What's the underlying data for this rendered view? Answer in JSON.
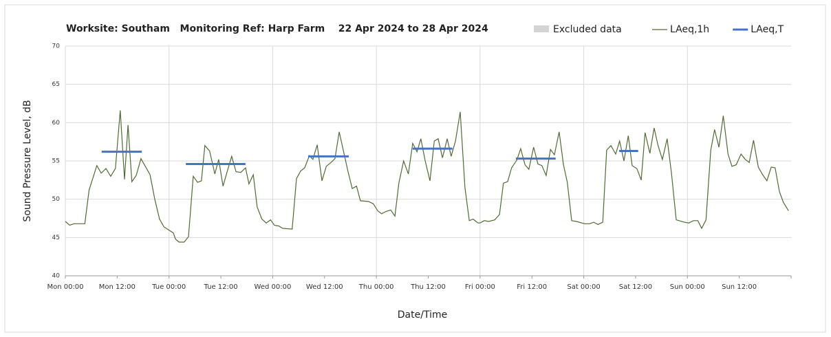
{
  "chart_data": {
    "type": "line",
    "title": "Worksite: Southam   Monitoring Ref: Harp Farm    22 Apr 2024 to 28 Apr 2024",
    "y_label": "Sound Pressure Level, dB",
    "x_label": "Date/Time",
    "legend_excluded": {
      "name": "Excluded data",
      "color": "#d4d4d4"
    },
    "xlim": [
      0,
      168
    ],
    "xticks": [
      {
        "value": 0,
        "label": "Mon 00:00"
      },
      {
        "value": 12,
        "label": "Mon 12:00"
      },
      {
        "value": 24,
        "label": "Tue 00:00"
      },
      {
        "value": 36,
        "label": "Tue 12:00"
      },
      {
        "value": 48,
        "label": "Wed 00:00"
      },
      {
        "value": 60,
        "label": "Wed 12:00"
      },
      {
        "value": 72,
        "label": "Thu 00:00"
      },
      {
        "value": 84,
        "label": "Thu 12:00"
      },
      {
        "value": 96,
        "label": "Fri 00:00"
      },
      {
        "value": 108,
        "label": "Fri 12:00"
      },
      {
        "value": 120,
        "label": "Sat 00:00"
      },
      {
        "value": 132,
        "label": "Sat 12:00"
      },
      {
        "value": 144,
        "label": "Sun 00:00"
      },
      {
        "value": 156,
        "label": "Sun 12:00"
      }
    ],
    "ylim": [
      40,
      70
    ],
    "yticks": [
      40,
      45,
      50,
      55,
      60,
      65,
      70
    ],
    "grid": true,
    "series": [
      {
        "name": "LAeq,1h",
        "color": "#4f6a32",
        "x": [
          0,
          1,
          2,
          4.5,
          5.5,
          7.3,
          8.3,
          9.4,
          10.5,
          11.6,
          12.7,
          13.7,
          14.5,
          15.4,
          16.4,
          17.5,
          19.6,
          20.7,
          21.8,
          22.8,
          23.9,
          25,
          25.5,
          26.3,
          27.5,
          28.5,
          29.6,
          30.6,
          31.5,
          32.3,
          33.4,
          34.6,
          35.5,
          36.5,
          37.4,
          38.5,
          39.5,
          40.6,
          41.7,
          42.5,
          43.5,
          44.4,
          45.5,
          46.5,
          47.5,
          48.4,
          49.4,
          50.3,
          52.5,
          53.5,
          54.5,
          55.4,
          56.5,
          57.3,
          58.3,
          59.4,
          60.4,
          61.5,
          62.4,
          63.4,
          64.5,
          65.4,
          66.4,
          67.4,
          68.3,
          70.2,
          71.3,
          72.3,
          73.2,
          74.2,
          75.3,
          76.3,
          77.2,
          78.3,
          79.4,
          80.4,
          81.4,
          82.3,
          83.3,
          84.4,
          85.4,
          86.3,
          87.3,
          88.4,
          89.3,
          90.3,
          91.4,
          92.5,
          93.5,
          94.4,
          95.5,
          96,
          97,
          98,
          99.4,
          100.5,
          101.4,
          102.4,
          103.3,
          104.5,
          105.4,
          106.4,
          107.3,
          108.4,
          109.4,
          110.3,
          111.3,
          112.3,
          113.2,
          114.3,
          115.3,
          116.2,
          117.2,
          118.3,
          120.2,
          121.4,
          122.3,
          123.3,
          124.4,
          125.3,
          126.3,
          127.4,
          128.3,
          129.3,
          130.3,
          131.2,
          132.3,
          133.3,
          134.2,
          135.3,
          136.3,
          137.2,
          138.2,
          139.3,
          140.3,
          141.4,
          143.3,
          144.3,
          145.4,
          146.4,
          147.3,
          148.3,
          149.4,
          150.3,
          151.3,
          152.3,
          153.4,
          154.3,
          155.3,
          156.4,
          157.4,
          158.3,
          159.3,
          160.4,
          161.3,
          162.4,
          163.4,
          164.3,
          165.3,
          166.2,
          167.4
        ],
        "values": [
          47.1,
          46.6,
          46.8,
          46.8,
          51.2,
          54.4,
          53.4,
          54,
          53,
          54,
          61.6,
          52.6,
          59.7,
          52.3,
          53.1,
          55.3,
          53.2,
          50,
          47.4,
          46.4,
          46,
          45.6,
          44.8,
          44.4,
          44.4,
          45.1,
          53,
          52.2,
          52.4,
          57,
          56.3,
          53.3,
          55.2,
          51.7,
          53.5,
          55.6,
          53.6,
          53.5,
          54.1,
          52,
          53.2,
          49,
          47.4,
          46.9,
          47.3,
          46.6,
          46.5,
          46.2,
          46.1,
          52.7,
          53.7,
          54.1,
          55.7,
          55.2,
          57.1,
          52.4,
          54.3,
          54.8,
          55.3,
          58.8,
          56,
          53.7,
          51.4,
          51.7,
          49.8,
          49.7,
          49.4,
          48.5,
          48.1,
          48.4,
          48.6,
          47.8,
          52.1,
          55,
          53.3,
          57.3,
          56.2,
          57.9,
          55,
          52.4,
          57.6,
          57.9,
          55.4,
          57.9,
          55.6,
          57.6,
          61.4,
          51.5,
          47.2,
          47.4,
          46.9,
          46.9,
          47.2,
          47.1,
          47.3,
          48,
          52.1,
          52.3,
          54.1,
          55.1,
          56.6,
          54.5,
          53.9,
          56.8,
          54.6,
          54.4,
          53.1,
          56.5,
          55.8,
          58.8,
          54.5,
          52.2,
          47.2,
          47.1,
          46.8,
          46.8,
          47,
          46.7,
          47,
          56.4,
          57,
          55.9,
          57.6,
          55,
          58.3,
          54.4,
          54,
          52.5,
          58.7,
          56,
          59.3,
          57,
          55.2,
          57.9,
          53.4,
          47.3,
          47,
          46.9,
          47.2,
          47.2,
          46.2,
          47.3,
          56.4,
          59.1,
          56.8,
          60.9,
          55.9,
          54.3,
          54.5,
          55.9,
          55.2,
          54.8,
          57.7,
          54.2,
          53.3,
          52.4,
          54.2,
          54.1,
          51,
          49.6,
          48.5
        ]
      },
      {
        "name": "LAeq,T",
        "color": "#4472c4",
        "segments": [
          {
            "x": [
              8.4,
              17.7
            ],
            "value": 56.2
          },
          {
            "x": [
              27.9,
              41.7
            ],
            "value": 54.6
          },
          {
            "x": [
              56.2,
              65.6
            ],
            "value": 55.6
          },
          {
            "x": [
              80.4,
              89.6
            ],
            "value": 56.6
          },
          {
            "x": [
              104.3,
              113.5
            ],
            "value": 55.3
          },
          {
            "x": [
              128.2,
              132.6
            ],
            "value": 56.3
          }
        ]
      }
    ]
  }
}
